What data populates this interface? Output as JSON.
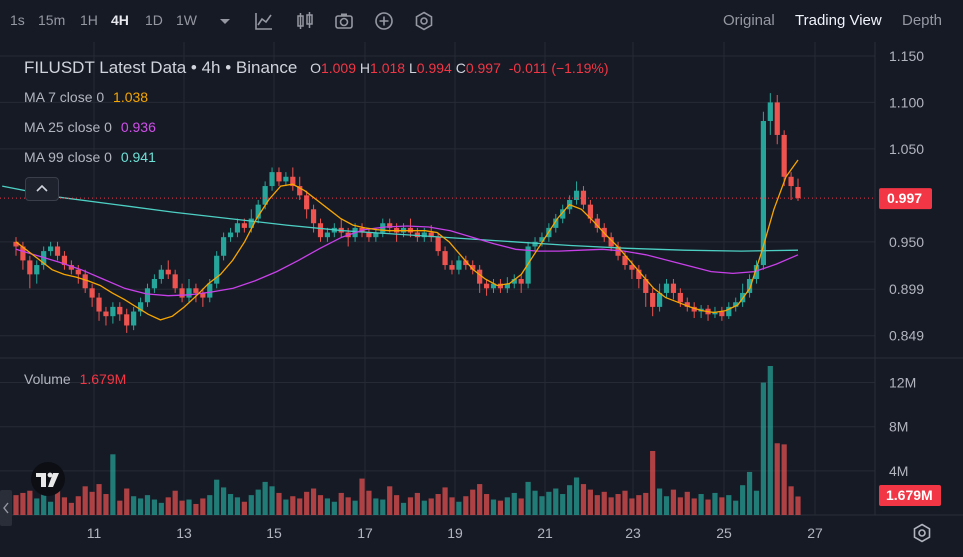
{
  "toolbar": {
    "timeframes": [
      "1s",
      "15m",
      "1H",
      "4H",
      "1D",
      "1W"
    ],
    "active_timeframe": "4H",
    "view_tabs": [
      "Original",
      "Trading View",
      "Depth"
    ],
    "active_view": "Trading View",
    "tool_icons": [
      "chevron-down-icon",
      "indicator-icon",
      "candle-style-icon",
      "camera-icon",
      "plus-circle-icon",
      "settings-hex-icon"
    ]
  },
  "legend": {
    "title": "FILUSDT Latest Data • 4h • Binance",
    "o_label": "O",
    "o_value": "1.009",
    "h_label": "H",
    "h_value": "1.018",
    "l_label": "L",
    "l_value": "0.994",
    "c_label": "C",
    "c_value": "0.997",
    "change": "-0.011 (−1.19%)",
    "ma7_label": "MA 7 close 0",
    "ma7_value": "1.038",
    "ma25_label": "MA 25 close 0",
    "ma25_value": "0.936",
    "ma99_label": "MA 99 close 0",
    "ma99_value": "0.941",
    "volume_label": "Volume",
    "volume_value": "1.679M"
  },
  "colors": {
    "up": "#26a69a",
    "down": "#ef5350",
    "ma7": "#f7a600",
    "ma25": "#c840e9",
    "ma99": "#4dd0c4",
    "price_tag": "#f23645",
    "background": "#161a25",
    "grid": "#262a34"
  },
  "chart_data": {
    "type": "candlestick",
    "title": "FILUSDT Latest Data • 4h • Binance",
    "price_axis": {
      "ticks": [
        "1.150",
        "1.100",
        "1.050",
        "0.997",
        "0.950",
        "0.899",
        "0.849"
      ],
      "range": [
        0.825,
        1.165
      ]
    },
    "volume_axis": {
      "ticks": [
        "12M",
        "8M",
        "4M"
      ],
      "range": [
        0,
        13.5
      ]
    },
    "x_ticks": [
      "11",
      "13",
      "15",
      "17",
      "19",
      "21",
      "23",
      "25",
      "27"
    ],
    "last_price": "0.997",
    "last_volume": "1.679M",
    "candles": [
      [
        0.95,
        0.945,
        0.955,
        0.935,
        1.8
      ],
      [
        0.945,
        0.93,
        0.95,
        0.92,
        2.0
      ],
      [
        0.93,
        0.915,
        0.935,
        0.9,
        2.2
      ],
      [
        0.915,
        0.925,
        0.93,
        0.905,
        1.5
      ],
      [
        0.925,
        0.94,
        0.945,
        0.92,
        1.9
      ],
      [
        0.94,
        0.945,
        0.95,
        0.935,
        1.2
      ],
      [
        0.945,
        0.935,
        0.95,
        0.93,
        2.4
      ],
      [
        0.935,
        0.925,
        0.94,
        0.92,
        1.6
      ],
      [
        0.925,
        0.92,
        0.93,
        0.915,
        1.1
      ],
      [
        0.92,
        0.915,
        0.925,
        0.905,
        1.7
      ],
      [
        0.915,
        0.9,
        0.92,
        0.895,
        2.6
      ],
      [
        0.9,
        0.89,
        0.905,
        0.88,
        2.1
      ],
      [
        0.89,
        0.875,
        0.895,
        0.865,
        2.8
      ],
      [
        0.875,
        0.87,
        0.88,
        0.86,
        1.9
      ],
      [
        0.87,
        0.88,
        0.885,
        0.862,
        5.5
      ],
      [
        0.88,
        0.872,
        0.885,
        0.865,
        1.3
      ],
      [
        0.872,
        0.86,
        0.878,
        0.852,
        2.4
      ],
      [
        0.86,
        0.875,
        0.88,
        0.855,
        1.7
      ],
      [
        0.875,
        0.885,
        0.89,
        0.87,
        1.5
      ],
      [
        0.885,
        0.9,
        0.905,
        0.88,
        1.8
      ],
      [
        0.9,
        0.91,
        0.915,
        0.895,
        1.4
      ],
      [
        0.91,
        0.92,
        0.925,
        0.905,
        1.1
      ],
      [
        0.92,
        0.915,
        0.93,
        0.91,
        1.6
      ],
      [
        0.915,
        0.9,
        0.92,
        0.895,
        2.2
      ],
      [
        0.9,
        0.89,
        0.905,
        0.885,
        1.3
      ],
      [
        0.89,
        0.9,
        0.91,
        0.885,
        1.4
      ],
      [
        0.9,
        0.895,
        0.905,
        0.885,
        1.0
      ],
      [
        0.895,
        0.89,
        0.9,
        0.88,
        1.5
      ],
      [
        0.89,
        0.905,
        0.91,
        0.885,
        1.8
      ],
      [
        0.905,
        0.935,
        0.94,
        0.9,
        3.2
      ],
      [
        0.935,
        0.955,
        0.96,
        0.93,
        2.5
      ],
      [
        0.955,
        0.96,
        0.965,
        0.95,
        1.9
      ],
      [
        0.96,
        0.97,
        0.975,
        0.955,
        1.6
      ],
      [
        0.97,
        0.965,
        0.975,
        0.96,
        1.2
      ],
      [
        0.965,
        0.975,
        0.985,
        0.96,
        1.8
      ],
      [
        0.975,
        0.99,
        0.995,
        0.97,
        2.3
      ],
      [
        0.99,
        1.01,
        1.015,
        0.985,
        3.0
      ],
      [
        1.01,
        1.025,
        1.03,
        1.005,
        2.6
      ],
      [
        1.025,
        1.015,
        1.03,
        1.01,
        2.0
      ],
      [
        1.015,
        1.02,
        1.025,
        1.01,
        1.4
      ],
      [
        1.02,
        1.01,
        1.03,
        1.005,
        1.7
      ],
      [
        1.01,
        1.0,
        1.02,
        0.995,
        1.5
      ],
      [
        1.0,
        0.985,
        1.005,
        0.975,
        2.1
      ],
      [
        0.985,
        0.97,
        0.99,
        0.96,
        2.4
      ],
      [
        0.97,
        0.955,
        0.975,
        0.95,
        1.8
      ],
      [
        0.955,
        0.96,
        0.965,
        0.95,
        1.5
      ],
      [
        0.96,
        0.965,
        0.97,
        0.955,
        1.2
      ],
      [
        0.965,
        0.96,
        0.975,
        0.955,
        2.0
      ],
      [
        0.96,
        0.955,
        0.965,
        0.945,
        1.6
      ],
      [
        0.955,
        0.965,
        0.97,
        0.95,
        1.3
      ],
      [
        0.965,
        0.96,
        0.97,
        0.955,
        3.3
      ],
      [
        0.96,
        0.955,
        0.965,
        0.95,
        2.2
      ],
      [
        0.955,
        0.96,
        0.965,
        0.95,
        1.5
      ],
      [
        0.96,
        0.97,
        0.975,
        0.955,
        1.4
      ],
      [
        0.97,
        0.965,
        0.975,
        0.96,
        2.6
      ],
      [
        0.965,
        0.96,
        0.97,
        0.95,
        1.8
      ],
      [
        0.96,
        0.965,
        0.97,
        0.955,
        1.1
      ],
      [
        0.965,
        0.96,
        0.975,
        0.955,
        1.6
      ],
      [
        0.96,
        0.955,
        0.965,
        0.95,
        2.0
      ],
      [
        0.955,
        0.96,
        0.965,
        0.95,
        1.3
      ],
      [
        0.96,
        0.955,
        0.968,
        0.95,
        1.5
      ],
      [
        0.955,
        0.94,
        0.96,
        0.935,
        1.9
      ],
      [
        0.94,
        0.925,
        0.945,
        0.92,
        2.5
      ],
      [
        0.925,
        0.92,
        0.93,
        0.915,
        1.6
      ],
      [
        0.92,
        0.93,
        0.935,
        0.915,
        1.2
      ],
      [
        0.93,
        0.925,
        0.935,
        0.92,
        1.7
      ],
      [
        0.925,
        0.92,
        0.93,
        0.915,
        2.3
      ],
      [
        0.92,
        0.905,
        0.925,
        0.895,
        2.8
      ],
      [
        0.905,
        0.9,
        0.91,
        0.892,
        1.9
      ],
      [
        0.9,
        0.905,
        0.91,
        0.895,
        1.4
      ],
      [
        0.905,
        0.9,
        0.91,
        0.895,
        1.3
      ],
      [
        0.9,
        0.905,
        0.912,
        0.895,
        1.6
      ],
      [
        0.905,
        0.91,
        0.915,
        0.9,
        2.0
      ],
      [
        0.91,
        0.905,
        0.915,
        0.895,
        1.5
      ],
      [
        0.905,
        0.945,
        0.95,
        0.9,
        3.0
      ],
      [
        0.945,
        0.95,
        0.955,
        0.94,
        2.2
      ],
      [
        0.95,
        0.955,
        0.96,
        0.945,
        1.7
      ],
      [
        0.955,
        0.965,
        0.97,
        0.95,
        2.1
      ],
      [
        0.965,
        0.975,
        0.98,
        0.96,
        2.4
      ],
      [
        0.975,
        0.985,
        0.99,
        0.97,
        1.9
      ],
      [
        0.985,
        0.995,
        1.0,
        0.98,
        2.7
      ],
      [
        0.995,
        1.005,
        1.015,
        0.99,
        3.4
      ],
      [
        1.005,
        0.99,
        1.01,
        0.985,
        2.8
      ],
      [
        0.99,
        0.975,
        0.995,
        0.97,
        2.3
      ],
      [
        0.975,
        0.965,
        0.98,
        0.96,
        1.8
      ],
      [
        0.965,
        0.955,
        0.97,
        0.95,
        2.1
      ],
      [
        0.955,
        0.945,
        0.96,
        0.94,
        1.6
      ],
      [
        0.945,
        0.935,
        0.95,
        0.93,
        1.9
      ],
      [
        0.935,
        0.925,
        0.94,
        0.92,
        2.2
      ],
      [
        0.925,
        0.92,
        0.93,
        0.91,
        1.5
      ],
      [
        0.92,
        0.91,
        0.925,
        0.9,
        1.8
      ],
      [
        0.91,
        0.895,
        0.915,
        0.88,
        2.0
      ],
      [
        0.895,
        0.88,
        0.9,
        0.87,
        5.8
      ],
      [
        0.88,
        0.895,
        0.905,
        0.875,
        2.4
      ],
      [
        0.895,
        0.905,
        0.91,
        0.89,
        1.7
      ],
      [
        0.905,
        0.895,
        0.91,
        0.888,
        2.3
      ],
      [
        0.895,
        0.885,
        0.9,
        0.88,
        1.6
      ],
      [
        0.885,
        0.88,
        0.89,
        0.875,
        2.1
      ],
      [
        0.88,
        0.875,
        0.885,
        0.868,
        1.5
      ],
      [
        0.875,
        0.878,
        0.882,
        0.868,
        1.9
      ],
      [
        0.878,
        0.872,
        0.882,
        0.865,
        1.4
      ],
      [
        0.872,
        0.875,
        0.88,
        0.868,
        2.0
      ],
      [
        0.875,
        0.87,
        0.88,
        0.865,
        1.6
      ],
      [
        0.87,
        0.88,
        0.885,
        0.867,
        1.8
      ],
      [
        0.88,
        0.885,
        0.89,
        0.875,
        1.3
      ],
      [
        0.885,
        0.895,
        0.905,
        0.88,
        2.7
      ],
      [
        0.895,
        0.91,
        0.915,
        0.89,
        3.9
      ],
      [
        0.91,
        0.925,
        0.93,
        0.905,
        2.2
      ],
      [
        0.925,
        1.08,
        1.09,
        0.92,
        12.0
      ],
      [
        1.08,
        1.1,
        1.11,
        1.065,
        13.5
      ],
      [
        1.1,
        1.065,
        1.108,
        1.055,
        6.5
      ],
      [
        1.065,
        1.02,
        1.07,
        1.01,
        6.4
      ],
      [
        1.02,
        1.01,
        1.025,
        0.995,
        2.6
      ],
      [
        1.009,
        0.997,
        1.018,
        0.994,
        1.679
      ]
    ],
    "ma7": [
      0.95,
      0.94,
      0.93,
      0.92,
      0.915,
      0.912,
      0.908,
      0.903,
      0.895,
      0.888,
      0.88,
      0.872,
      0.866,
      0.87,
      0.88,
      0.892,
      0.905,
      0.915,
      0.93,
      0.95,
      0.975,
      0.995,
      1.01,
      1.012,
      1.005,
      0.995,
      0.985,
      0.975,
      0.968,
      0.965,
      0.963,
      0.962,
      0.962,
      0.962,
      0.962,
      0.96,
      0.95,
      0.935,
      0.92,
      0.91,
      0.903,
      0.905,
      0.915,
      0.935,
      0.955,
      0.975,
      0.99,
      0.985,
      0.972,
      0.958,
      0.945,
      0.93,
      0.915,
      0.9,
      0.89,
      0.885,
      0.88,
      0.876,
      0.874,
      0.876,
      0.882,
      0.9,
      0.94,
      0.985,
      1.02,
      1.038
    ],
    "ma25": [
      0.942,
      0.935,
      0.928,
      0.92,
      0.91,
      0.9,
      0.894,
      0.892,
      0.893,
      0.896,
      0.9,
      0.908,
      0.918,
      0.93,
      0.943,
      0.955,
      0.963,
      0.966,
      0.967,
      0.966,
      0.962,
      0.955,
      0.948,
      0.942,
      0.94,
      0.94,
      0.941,
      0.942,
      0.94,
      0.936,
      0.93,
      0.924,
      0.918,
      0.916,
      0.918,
      0.926,
      0.936
    ],
    "ma99": [
      1.01,
      0.998,
      0.99,
      0.982,
      0.975,
      0.968,
      0.962,
      0.958,
      0.954,
      0.95,
      0.946,
      0.943,
      0.941,
      0.94,
      0.941
    ]
  }
}
